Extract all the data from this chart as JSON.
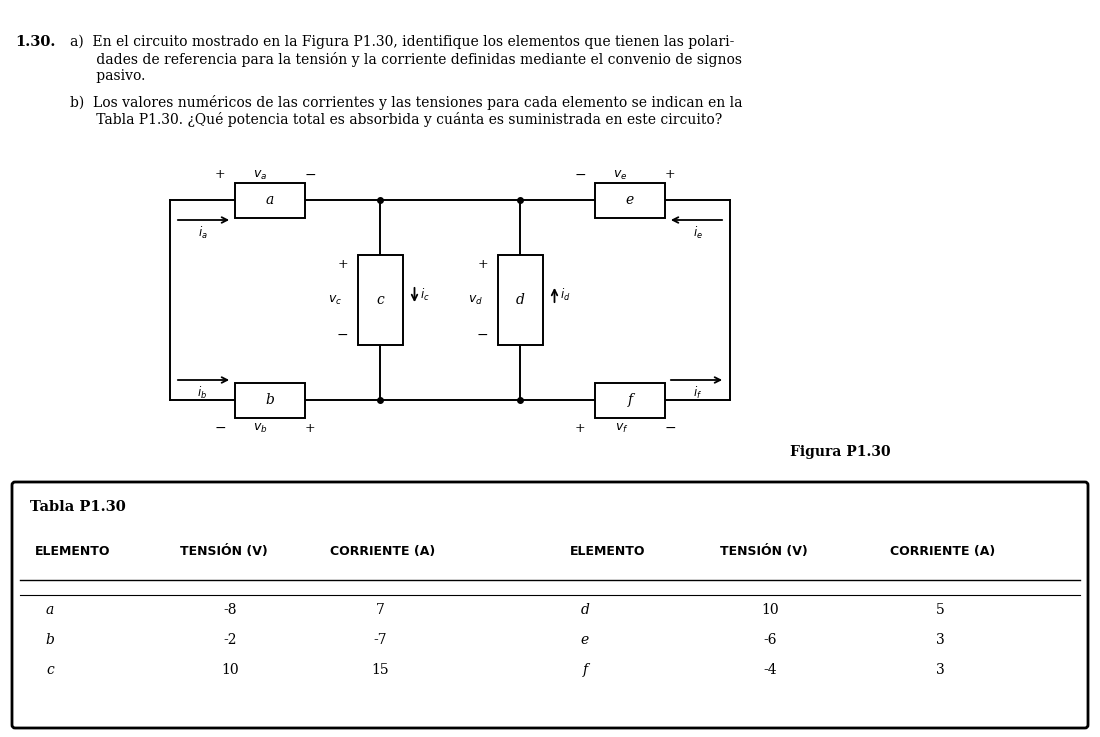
{
  "title_number": "1.30.",
  "line1": "a)  En el circuito mostrado en la Figura P1.30, identifique los elementos que tienen las polari-",
  "line2": "      dades de referencia para la tensión y la corriente definidas mediante el convenio de signos",
  "line3": "      pasivo.",
  "line4": "b)  Los valores numéricos de las corrientes y las tensiones para cada elemento se indican en la",
  "line5": "      Tabla P1.30. ¿Qué potencia total es absorbida y cuánta es suministrada en este circuito?",
  "figura_label": "Figura P1.30",
  "tabla_label": "Tabla P1.30",
  "table_headers": [
    "ELEMENTO",
    "TENSIÓN (V)",
    "CORRIENTE (A)",
    "ELEMENTO",
    "TENSIÓN (V)",
    "CORRIENTE (A)"
  ],
  "table_data_left": [
    [
      "a",
      "-8",
      "7"
    ],
    [
      "b",
      "-2",
      "-7"
    ],
    [
      "c",
      "10",
      "15"
    ]
  ],
  "table_data_right": [
    [
      "d",
      "10",
      "5"
    ],
    [
      "e",
      "-6",
      "3"
    ],
    [
      "f",
      "-4",
      "3"
    ]
  ],
  "bg_color": "#ffffff"
}
